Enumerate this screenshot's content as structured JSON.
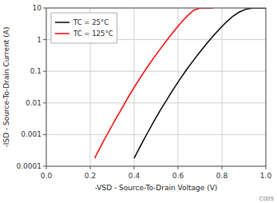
{
  "chart_data": {
    "type": "line",
    "xlabel": "-VSD - Source-To-Drain Voltage (V)",
    "ylabel": "-ISD - Source-To-Drain Current (A)",
    "log": "y",
    "xlim": [
      0,
      1.0
    ],
    "ylim": [
      0.0001,
      10
    ],
    "xticks": [
      {
        "value": 0,
        "label": "0.0"
      },
      0.2,
      0.4,
      0.6,
      0.8,
      {
        "value": 1.0,
        "label": "1.0"
      }
    ],
    "yticks": [
      0.0001,
      0.001,
      0.01,
      0.1,
      1,
      10
    ],
    "grid": true,
    "legend": "upper left",
    "series": [
      {
        "name": "TC = 25°C",
        "color": "black",
        "x": [
          0.4,
          0.43,
          0.46,
          0.49,
          0.52,
          0.55,
          0.58,
          0.61,
          0.64,
          0.67,
          0.7,
          0.73,
          0.76,
          0.79,
          0.82,
          0.85,
          0.88,
          0.91,
          0.94,
          0.97,
          1.0
        ],
        "values": [
          0.00018,
          0.00045,
          0.0011,
          0.0026,
          0.006,
          0.013,
          0.028,
          0.058,
          0.115,
          0.22,
          0.41,
          0.74,
          1.3,
          2.2,
          3.6,
          5.5,
          7.5,
          9.2,
          10.0,
          10.0,
          10.0
        ]
      },
      {
        "name": "TC = 125°C",
        "color": "red",
        "x": [
          0.22,
          0.25,
          0.28,
          0.31,
          0.34,
          0.37,
          0.4,
          0.43,
          0.46,
          0.49,
          0.52,
          0.55,
          0.58,
          0.61,
          0.64,
          0.67,
          0.7,
          0.73,
          0.76
        ],
        "values": [
          0.00018,
          0.00045,
          0.0011,
          0.0026,
          0.006,
          0.014,
          0.031,
          0.066,
          0.135,
          0.27,
          0.52,
          0.98,
          1.8,
          3.2,
          5.4,
          8.4,
          10.0,
          10.0,
          10.0
        ]
      }
    ],
    "annotations": [
      "C009"
    ]
  }
}
